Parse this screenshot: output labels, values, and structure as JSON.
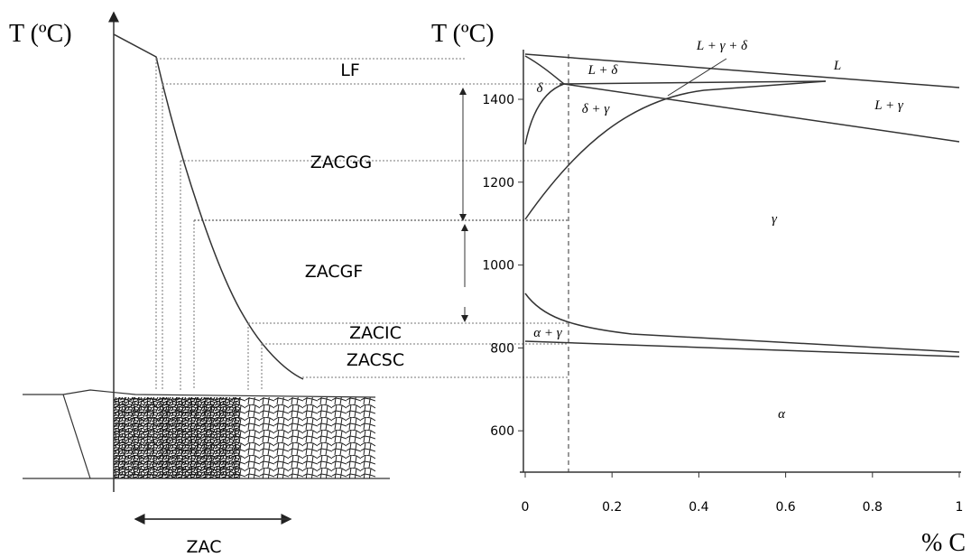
{
  "left": {
    "axis_label": "T (ºC)",
    "zones": [
      "LF",
      "ZACGG",
      "ZACGF",
      "ZACIC",
      "ZACSC"
    ],
    "zone_label": "ZAC"
  },
  "right": {
    "axis_label": "T (ºC)",
    "x_label": "% C",
    "yticks": [
      "1400",
      "1200",
      "1000",
      "800",
      "600"
    ],
    "xticks": [
      "0",
      "0.2",
      "0.4",
      "0.6",
      "0.8",
      "1"
    ],
    "phases": [
      "L + γ + δ",
      "L",
      "L + δ",
      "δ",
      "L + γ",
      "δ + γ",
      "γ",
      "α + γ",
      "α"
    ]
  }
}
